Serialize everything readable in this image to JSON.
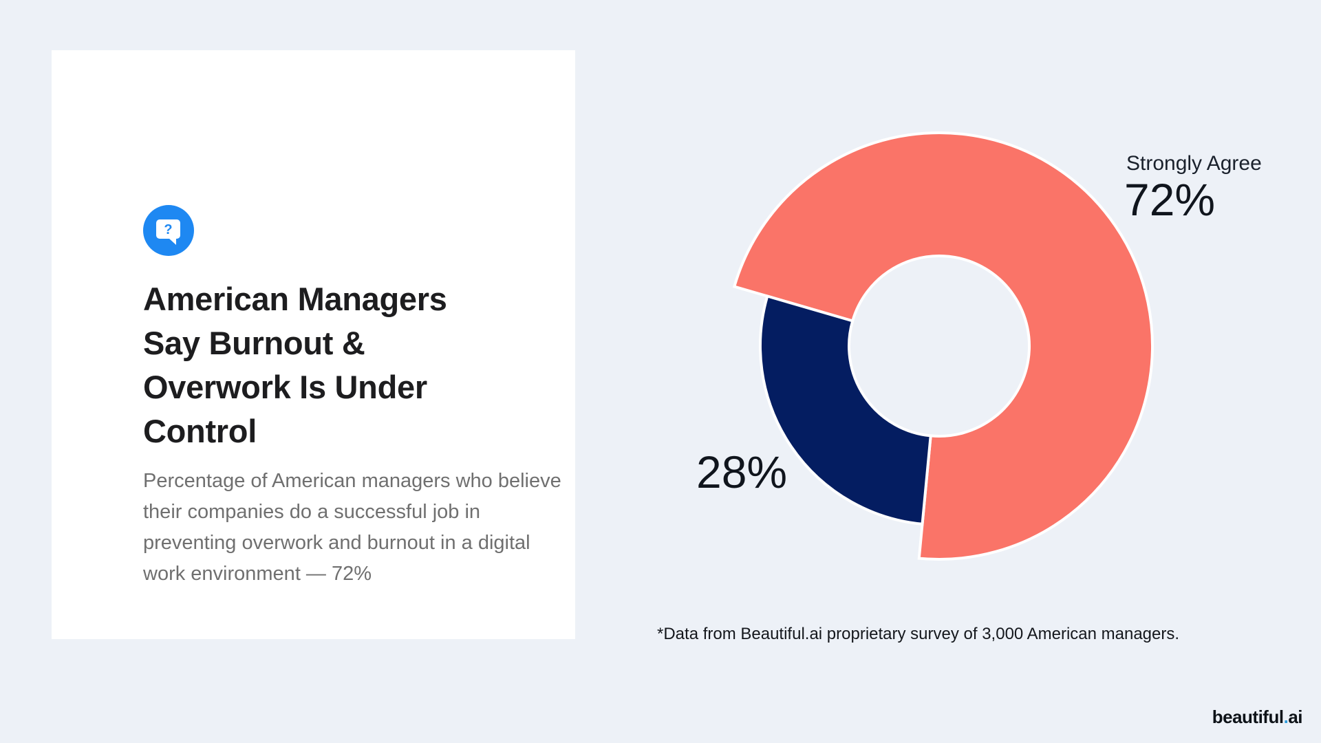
{
  "slide": {
    "background_color": "#EDF1F7",
    "card": {
      "icon": {
        "name": "question-speech-bubble",
        "bg_color": "#1E88F2",
        "glyph": "?"
      },
      "title": "American Managers Say Burnout & Overwork Is Under Control",
      "description": "Percentage of American managers who believe their companies do a successful job in preventing overwork and burnout in a digital work environment — 72%"
    },
    "footnote": "*Data from Beautiful.ai proprietary survey of 3,000 American managers.",
    "brand": {
      "name": "beautiful",
      "dot": ".",
      "suffix": "ai",
      "dot_color": "#2D9CDB"
    }
  },
  "chart_data": {
    "type": "pie",
    "style": "donut",
    "title": "",
    "start_angle": 286.2,
    "inner_radius": 131,
    "legend_position": "callout-labels",
    "segments": [
      {
        "label": "Strongly Agree",
        "value": 72,
        "display": "72%",
        "color": "#FA7468",
        "outer_radius": 310
      },
      {
        "label": "",
        "value": 28,
        "display": "28%",
        "color": "#041D61",
        "outer_radius": 260
      }
    ]
  }
}
